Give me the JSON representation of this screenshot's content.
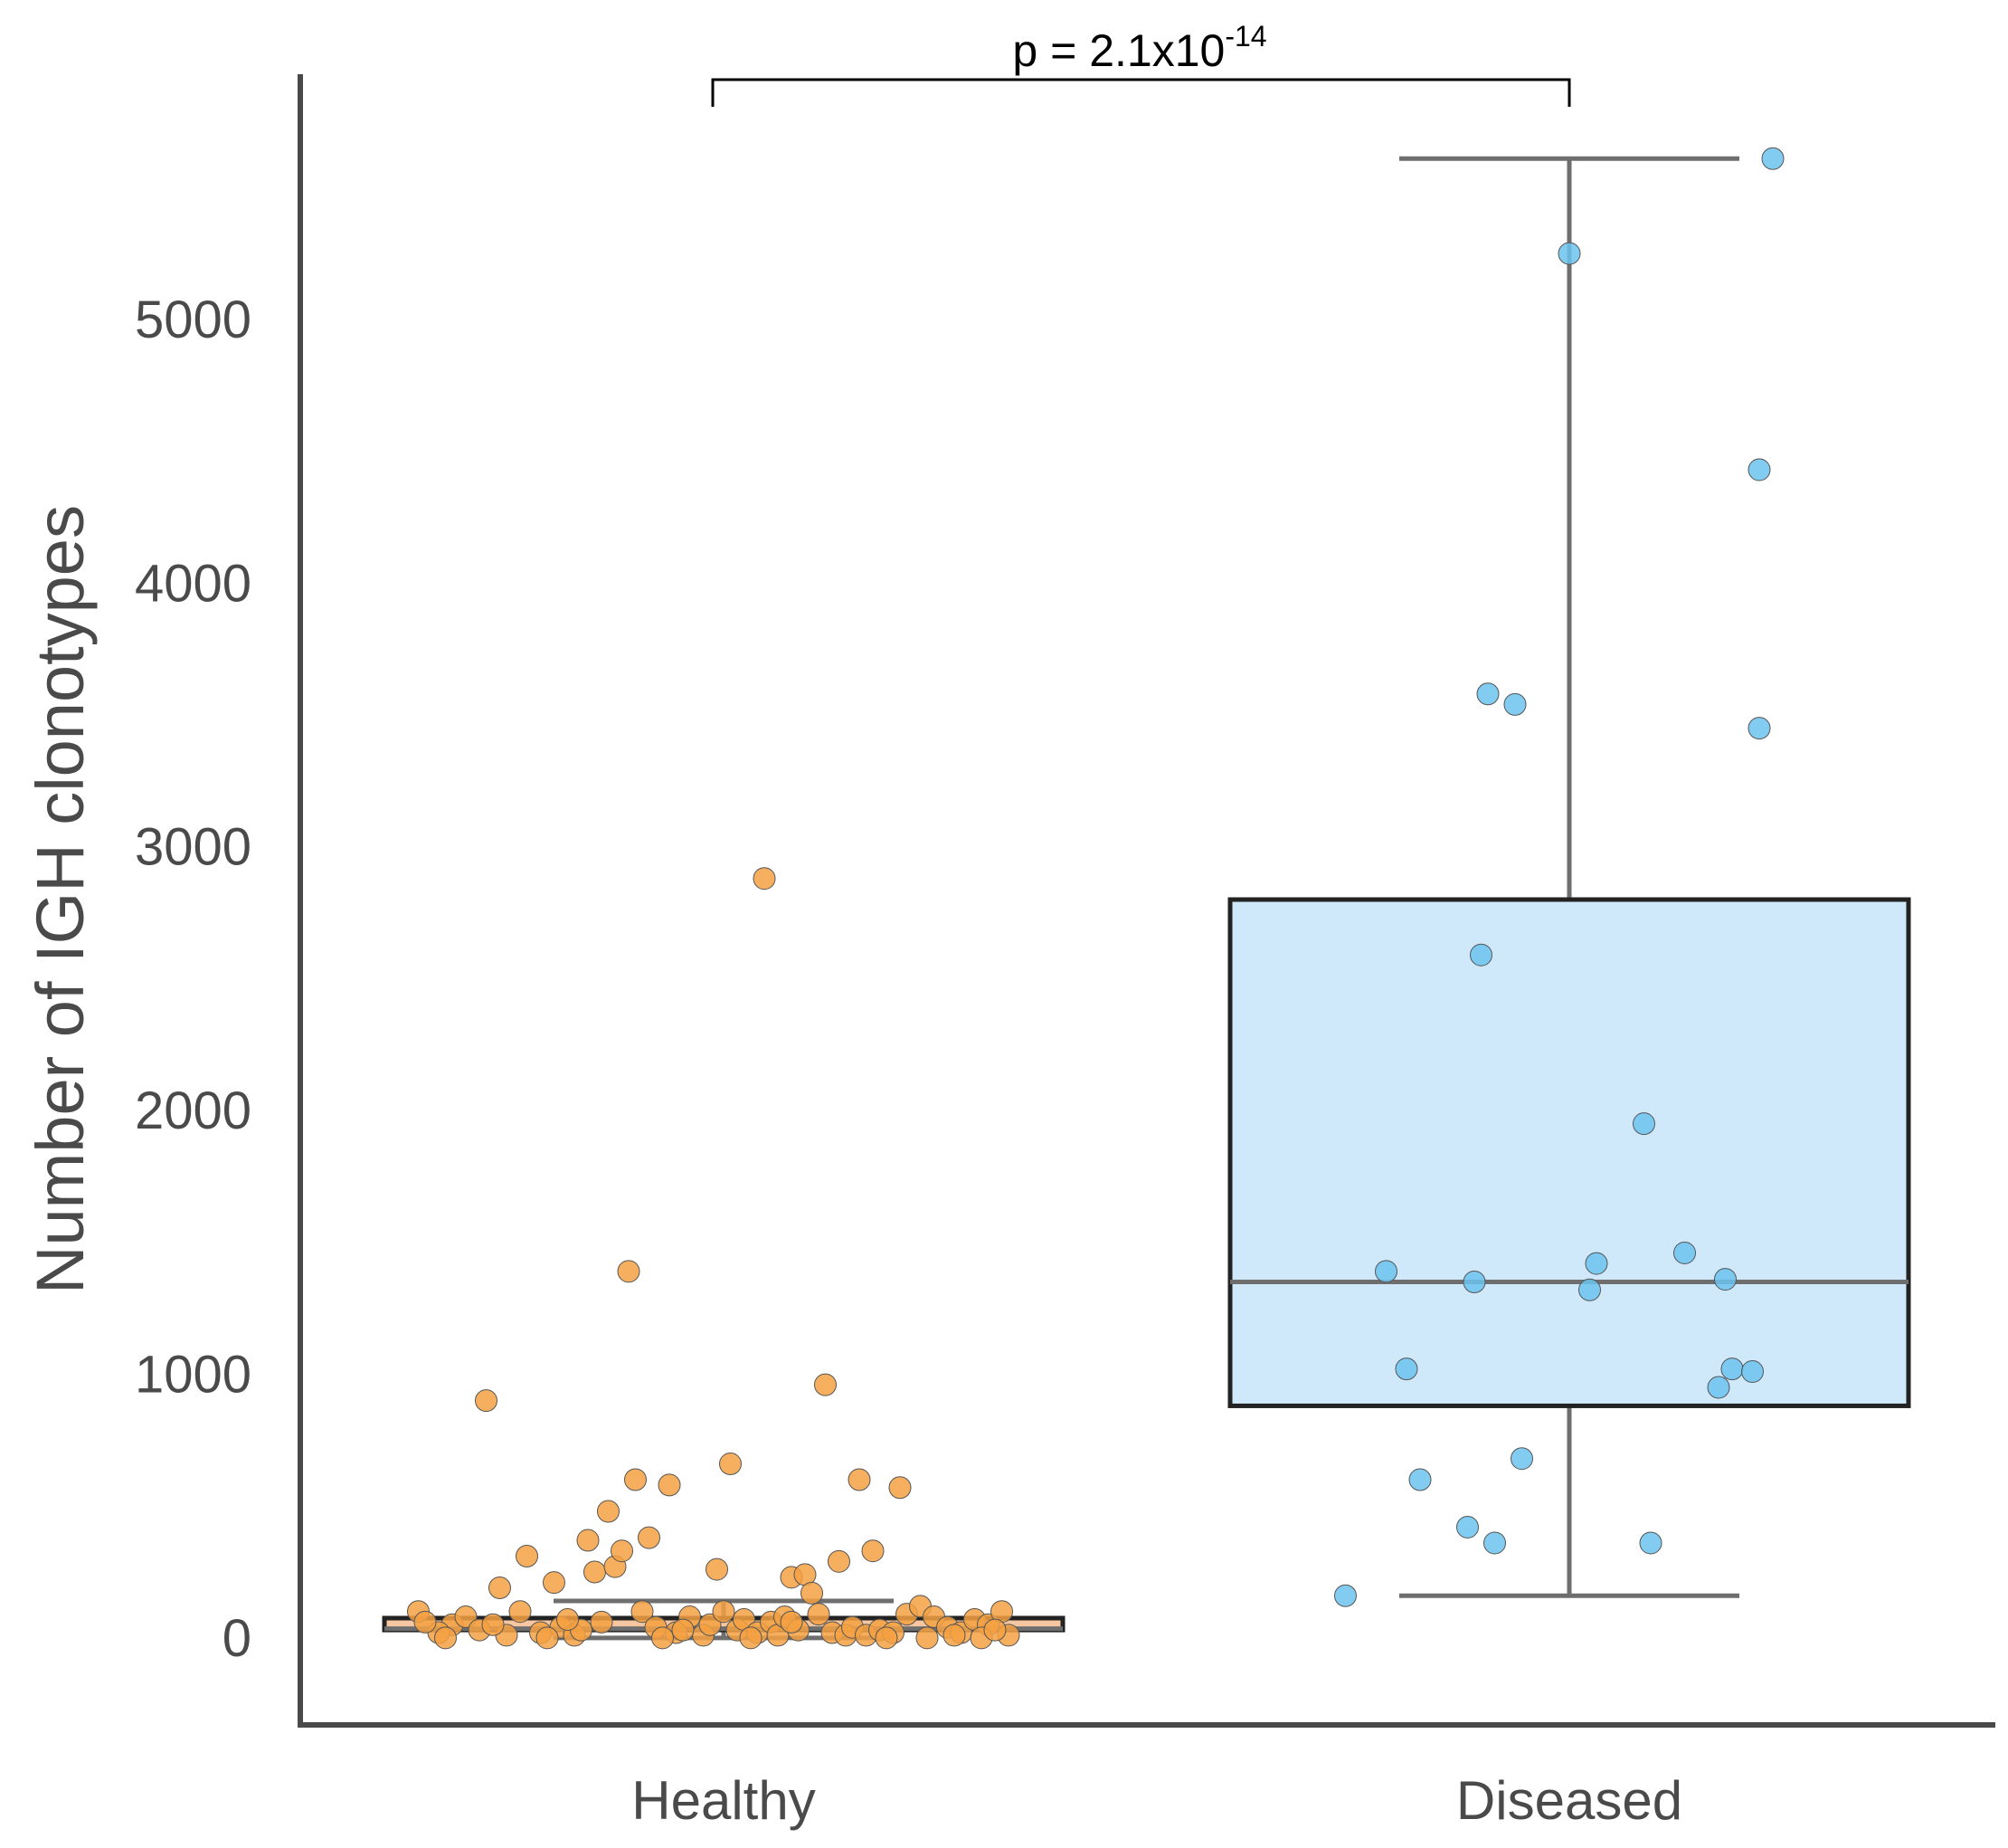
{
  "chart_data": {
    "type": "box",
    "title": "",
    "xlabel": "",
    "ylabel": "Number of IGH clonotypes",
    "ylim": [
      -330,
      5930
    ],
    "yticks": [
      0,
      1000,
      2000,
      3000,
      4000,
      5000
    ],
    "grid": false,
    "annotation": {
      "text": "p = 2.1x10",
      "exponent": "-14",
      "between": [
        "Healthy",
        "Diseased"
      ]
    },
    "colors": {
      "healthy_box": "#f5c6a0",
      "healthy_points": "#f5a142",
      "diseased_box": "#cfe9fb",
      "diseased_points": "#6cc3ef",
      "box_edge": "#222222",
      "whisker": "#6e6e6e",
      "axis": "#4a4a4a"
    },
    "categories": [
      "Healthy",
      "Diseased"
    ],
    "groups": [
      {
        "category": "Healthy",
        "box": {
          "whislo": 0,
          "q1": 30,
          "median": 35,
          "q3": 75,
          "whishi": 140
        },
        "points": [
          {
            "jitter": -0.45,
            "value": 100
          },
          {
            "jitter": -0.4,
            "value": 50
          },
          {
            "jitter": -0.35,
            "value": 900
          },
          {
            "jitter": -0.33,
            "value": 190
          },
          {
            "jitter": -0.29,
            "value": 310
          },
          {
            "jitter": -0.25,
            "value": 210
          },
          {
            "jitter": -0.2,
            "value": 370
          },
          {
            "jitter": -0.19,
            "value": 250
          },
          {
            "jitter": -0.17,
            "value": 480
          },
          {
            "jitter": -0.16,
            "value": 270
          },
          {
            "jitter": -0.15,
            "value": 330
          },
          {
            "jitter": -0.14,
            "value": 1390
          },
          {
            "jitter": -0.13,
            "value": 600
          },
          {
            "jitter": -0.11,
            "value": 380
          },
          {
            "jitter": -0.08,
            "value": 580
          },
          {
            "jitter": -0.01,
            "value": 260
          },
          {
            "jitter": 0.01,
            "value": 660
          },
          {
            "jitter": 0.06,
            "value": 2880
          },
          {
            "jitter": 0.1,
            "value": 230
          },
          {
            "jitter": 0.12,
            "value": 240
          },
          {
            "jitter": 0.13,
            "value": 170
          },
          {
            "jitter": 0.15,
            "value": 960
          },
          {
            "jitter": 0.17,
            "value": 290
          },
          {
            "jitter": 0.2,
            "value": 600
          },
          {
            "jitter": 0.22,
            "value": 330
          },
          {
            "jitter": 0.26,
            "value": 570
          },
          {
            "jitter": -0.42,
            "value": 20
          },
          {
            "jitter": -0.38,
            "value": 80
          },
          {
            "jitter": -0.36,
            "value": 30
          },
          {
            "jitter": -0.32,
            "value": 10
          },
          {
            "jitter": -0.3,
            "value": 100
          },
          {
            "jitter": -0.27,
            "value": 20
          },
          {
            "jitter": -0.24,
            "value": 40
          },
          {
            "jitter": -0.22,
            "value": 10
          },
          {
            "jitter": -0.21,
            "value": 30
          },
          {
            "jitter": -0.18,
            "value": 60
          },
          {
            "jitter": -0.12,
            "value": 100
          },
          {
            "jitter": -0.1,
            "value": 40
          },
          {
            "jitter": -0.07,
            "value": 20
          },
          {
            "jitter": -0.05,
            "value": 80
          },
          {
            "jitter": -0.03,
            "value": 10
          },
          {
            "jitter": -0.02,
            "value": 50
          },
          {
            "jitter": 0.0,
            "value": 100
          },
          {
            "jitter": 0.02,
            "value": 30
          },
          {
            "jitter": 0.03,
            "value": 70
          },
          {
            "jitter": 0.05,
            "value": 20
          },
          {
            "jitter": 0.07,
            "value": 60
          },
          {
            "jitter": 0.08,
            "value": 10
          },
          {
            "jitter": 0.09,
            "value": 80
          },
          {
            "jitter": 0.11,
            "value": 30
          },
          {
            "jitter": 0.14,
            "value": 90
          },
          {
            "jitter": 0.16,
            "value": 20
          },
          {
            "jitter": 0.18,
            "value": 10
          },
          {
            "jitter": 0.19,
            "value": 40
          },
          {
            "jitter": 0.21,
            "value": 10
          },
          {
            "jitter": 0.23,
            "value": 30
          },
          {
            "jitter": 0.25,
            "value": 20
          },
          {
            "jitter": 0.27,
            "value": 90
          },
          {
            "jitter": 0.29,
            "value": 120
          },
          {
            "jitter": 0.31,
            "value": 80
          },
          {
            "jitter": 0.33,
            "value": 40
          },
          {
            "jitter": 0.35,
            "value": 20
          },
          {
            "jitter": 0.37,
            "value": 70
          },
          {
            "jitter": 0.39,
            "value": 50
          },
          {
            "jitter": 0.41,
            "value": 100
          },
          {
            "jitter": 0.42,
            "value": 10
          },
          {
            "jitter": -0.44,
            "value": 60
          },
          {
            "jitter": -0.41,
            "value": 0
          },
          {
            "jitter": -0.34,
            "value": 50
          },
          {
            "jitter": -0.26,
            "value": 0
          },
          {
            "jitter": -0.23,
            "value": 70
          },
          {
            "jitter": -0.09,
            "value": 0
          },
          {
            "jitter": -0.06,
            "value": 30
          },
          {
            "jitter": 0.04,
            "value": 0
          },
          {
            "jitter": 0.1,
            "value": 60
          },
          {
            "jitter": 0.24,
            "value": 0
          },
          {
            "jitter": 0.3,
            "value": 0
          },
          {
            "jitter": 0.34,
            "value": 10
          },
          {
            "jitter": 0.38,
            "value": 0
          },
          {
            "jitter": 0.4,
            "value": 30
          }
        ]
      },
      {
        "category": "Diseased",
        "box": {
          "whislo": 160,
          "q1": 880,
          "median": 1350,
          "q3": 2800,
          "whishi": 5610
        },
        "points": [
          {
            "jitter": -0.33,
            "value": 160
          },
          {
            "jitter": -0.27,
            "value": 1390
          },
          {
            "jitter": -0.24,
            "value": 1020
          },
          {
            "jitter": -0.22,
            "value": 600
          },
          {
            "jitter": -0.15,
            "value": 420
          },
          {
            "jitter": -0.14,
            "value": 1350
          },
          {
            "jitter": -0.13,
            "value": 2590
          },
          {
            "jitter": -0.12,
            "value": 3580
          },
          {
            "jitter": -0.11,
            "value": 360
          },
          {
            "jitter": -0.08,
            "value": 3540
          },
          {
            "jitter": -0.07,
            "value": 680
          },
          {
            "jitter": 0.0,
            "value": 5250
          },
          {
            "jitter": 0.03,
            "value": 1320
          },
          {
            "jitter": 0.04,
            "value": 1420
          },
          {
            "jitter": 0.11,
            "value": 1950
          },
          {
            "jitter": 0.12,
            "value": 360
          },
          {
            "jitter": 0.17,
            "value": 1460
          },
          {
            "jitter": 0.22,
            "value": 950
          },
          {
            "jitter": 0.23,
            "value": 1360
          },
          {
            "jitter": 0.24,
            "value": 1020
          },
          {
            "jitter": 0.27,
            "value": 1010
          },
          {
            "jitter": 0.28,
            "value": 4430
          },
          {
            "jitter": 0.28,
            "value": 3450
          },
          {
            "jitter": 0.3,
            "value": 5610
          }
        ]
      }
    ]
  }
}
